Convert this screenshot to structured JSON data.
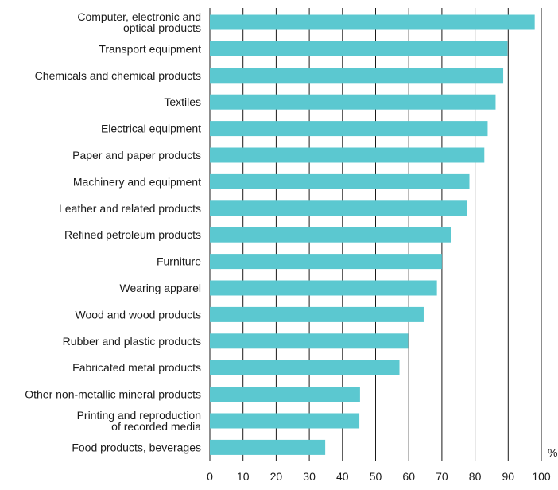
{
  "chart_data": {
    "type": "bar",
    "orientation": "horizontal",
    "categories": [
      "Computer, electronic and optical products",
      "Transport equipment",
      "Chemicals and chemical products",
      "Textiles",
      "Electrical equipment",
      "Paper and paper products",
      "Machinery and equipment",
      "Leather and related products",
      "Refined petroleum products",
      "Furniture",
      "Wearing apparel",
      "Wood and wood products",
      "Rubber and plastic products",
      "Fabricated metal products",
      "Other non-metallic mineral products",
      "Printing and reproduction of recorded media",
      "Food products, beverages"
    ],
    "category_label_lines": [
      [
        "Computer, electronic and",
        "optical products"
      ],
      [
        "Transport equipment"
      ],
      [
        "Chemicals and chemical products"
      ],
      [
        "Textiles"
      ],
      [
        "Electrical equipment"
      ],
      [
        "Paper and paper products"
      ],
      [
        "Machinery and equipment"
      ],
      [
        "Leather and related products"
      ],
      [
        "Refined petroleum products"
      ],
      [
        "Furniture"
      ],
      [
        "Wearing apparel"
      ],
      [
        "Wood and wood products"
      ],
      [
        "Rubber and plastic products"
      ],
      [
        "Fabricated metal products"
      ],
      [
        "Other non-metallic mineral products"
      ],
      [
        "Printing and reproduction",
        "of recorded media"
      ],
      [
        "Food products, beverages"
      ]
    ],
    "values": [
      98,
      89.8,
      88.5,
      86.2,
      83.8,
      82.8,
      78.3,
      77.5,
      72.7,
      70,
      68.5,
      64.5,
      59.8,
      57.2,
      45.3,
      45.1,
      34.8
    ],
    "xlim": [
      0,
      100
    ],
    "xticks": [
      0,
      10,
      20,
      30,
      40,
      50,
      60,
      70,
      80,
      90,
      100
    ],
    "unit_label": "%",
    "grid": true,
    "bar_color": "#5bc8d0",
    "gridline_color": "#1a1a1a"
  }
}
